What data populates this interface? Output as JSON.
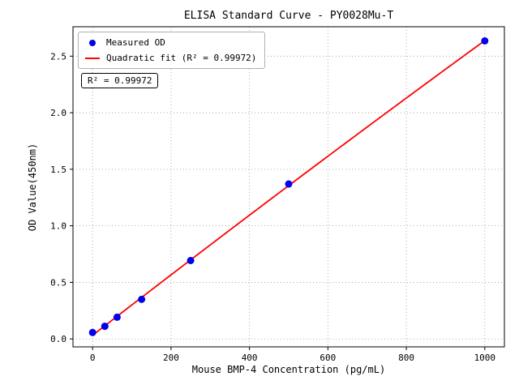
{
  "figure": {
    "background": "#ffffff"
  },
  "chart_data": {
    "type": "scatter",
    "title": "ELISA Standard Curve - PY0028Mu-T",
    "xlabel": "Mouse BMP-4 Concentration (pg/mL)",
    "ylabel": "OD Value(450nm)",
    "xlim": [
      -50,
      1050
    ],
    "ylim": [
      -0.07,
      2.76
    ],
    "x_ticks": [
      0,
      200,
      400,
      600,
      800,
      1000
    ],
    "x_tick_labels": [
      "0",
      "200",
      "400",
      "600",
      "800",
      "1000"
    ],
    "y_ticks": [
      0.0,
      0.5,
      1.0,
      1.5,
      2.0,
      2.5
    ],
    "y_tick_labels": [
      "0.0",
      "0.5",
      "1.0",
      "1.5",
      "2.0",
      "2.5"
    ],
    "grid": true,
    "grid_style": "dotted",
    "grid_color": "#9a9a9a",
    "legend_position": "upper left",
    "series": [
      {
        "name": "Measured OD",
        "type": "scatter",
        "color": "#0000ee",
        "x": [
          0,
          31.25,
          62.5,
          125,
          250,
          500,
          1000
        ],
        "y": [
          0.057,
          0.112,
          0.192,
          0.35,
          0.693,
          1.37,
          2.635
        ]
      },
      {
        "name": "Quadratic fit (R² = 0.99972)",
        "type": "quadratic-fit",
        "color": "#ff0000",
        "fit_of_series": 0,
        "x_range": [
          0,
          1000
        ]
      }
    ],
    "annotation": {
      "text": "R² = 0.99972"
    },
    "r_squared": 0.99972,
    "axis_color": "#000000"
  }
}
